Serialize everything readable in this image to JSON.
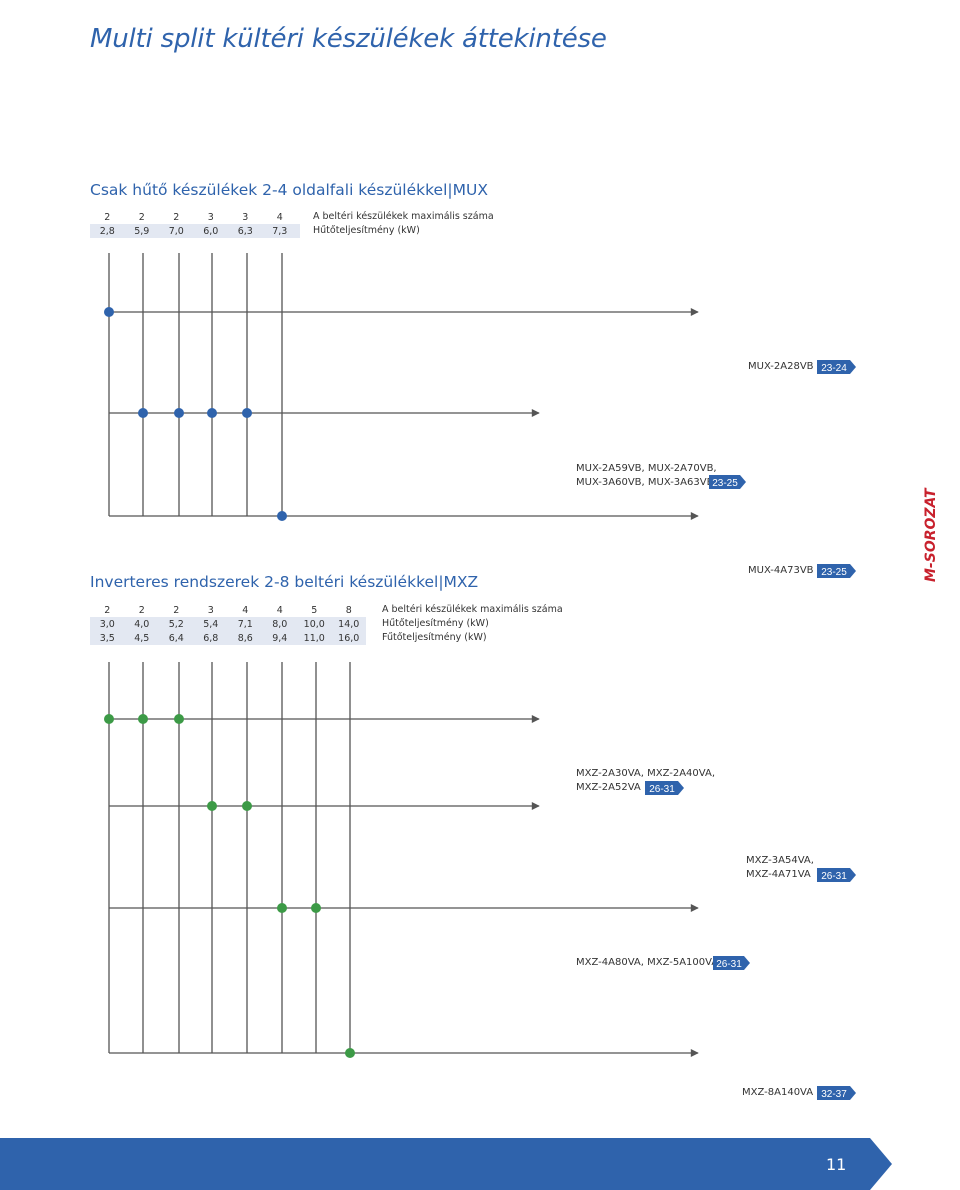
{
  "title": "Multi split kültéri készülékek áttekintése",
  "mux": {
    "title": "Csak hűtő készülékek 2-4 oldalfali készülékkel|MUX",
    "rows": [
      {
        "values": [
          "2",
          "2",
          "2",
          "3",
          "3",
          "4"
        ],
        "label": "A beltéri készülékek maximális száma"
      },
      {
        "values": [
          "2,8",
          "5,9",
          "7,0",
          "6,0",
          "6,3",
          "7,3"
        ],
        "label": "Hűtőteljesítmény (kW)"
      }
    ],
    "models": [
      {
        "lines": [
          "MUX-2A28VB"
        ],
        "badge": "23-24"
      },
      {
        "lines": [
          "MUX-2A59VB, MUX-2A70VB,",
          "MUX-3A60VB, MUX-3A63VB"
        ],
        "badge": "23-25"
      },
      {
        "lines": [
          "MUX-4A73VB"
        ],
        "badge": "23-25"
      }
    ],
    "dot_color": "#2f63ac"
  },
  "mxz": {
    "title": "Inverteres rendszerek 2-8 beltéri készülékkel|MXZ",
    "rows": [
      {
        "values": [
          "2",
          "2",
          "2",
          "3",
          "4",
          "4",
          "5",
          "8"
        ],
        "label": "A beltéri készülékek maximális száma"
      },
      {
        "values": [
          "3,0",
          "4,0",
          "5,2",
          "5,4",
          "7,1",
          "8,0",
          "10,0",
          "14,0"
        ],
        "label": "Hűtőteljesítmény (kW)"
      },
      {
        "values": [
          "3,5",
          "4,5",
          "6,4",
          "6,8",
          "8,6",
          "9,4",
          "11,0",
          "16,0"
        ],
        "label": "Fűtőteljesítmény (kW)"
      }
    ],
    "models": [
      {
        "lines": [
          "MXZ-2A30VA, MXZ-2A40VA,",
          "MXZ-2A52VA"
        ],
        "badge": "26-31"
      },
      {
        "lines": [
          "MXZ-3A54VA,",
          "MXZ-4A71VA"
        ],
        "badge": "26-31"
      },
      {
        "lines": [
          "MXZ-4A80VA, MXZ-5A100VA"
        ],
        "badge": "26-31"
      },
      {
        "lines": [
          "MXZ-8A140VA"
        ],
        "badge": "32-37"
      }
    ],
    "dot_color": "#3c9a46"
  },
  "side_label": "M-SOROZAT",
  "side_color": "#c8212d",
  "accent_color": "#2f63ac",
  "page_number": "11"
}
